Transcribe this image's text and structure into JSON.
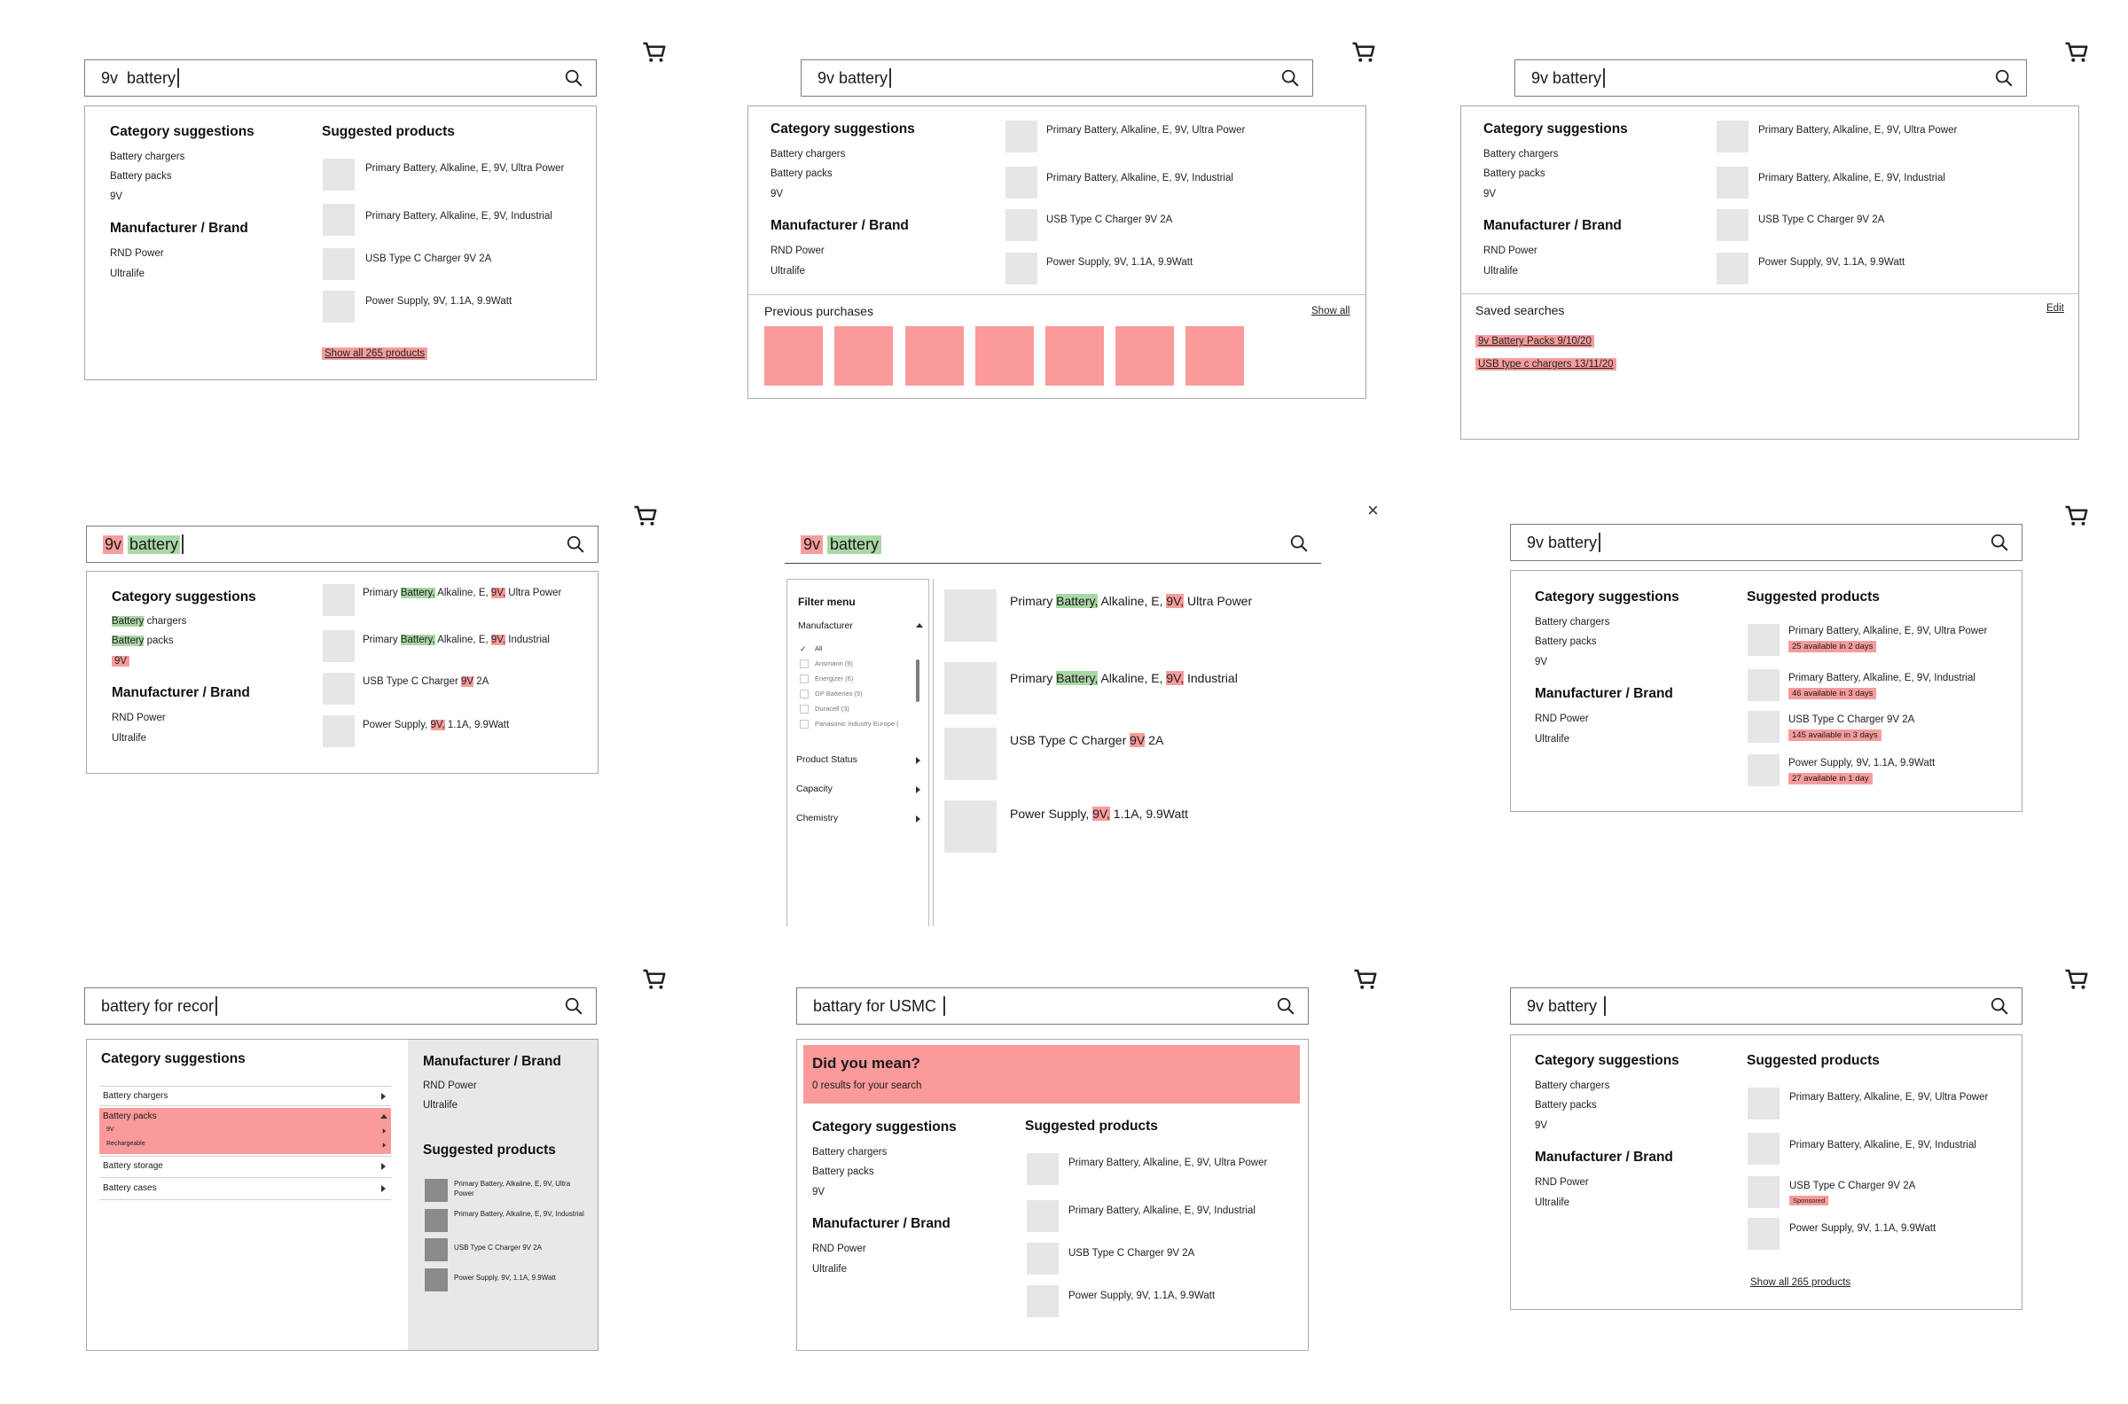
{
  "colors": {
    "highlight_red": "#f79c9c",
    "highlight_green": "#a9d7a5",
    "thumb": "#e6e6e6",
    "panel_border": "#a8a8a8"
  },
  "common": {
    "cat_title": "Category suggestions",
    "cat_items": [
      "Battery chargers",
      "Battery packs",
      "9V"
    ],
    "brand_title": "Manufacturer / Brand",
    "brand_items": [
      "RND Power",
      "Ultralife"
    ],
    "sugg_title": "Suggested products",
    "products": [
      "Primary Battery, Alkaline, E, 9V, Ultra Power",
      "Primary Battery, Alkaline, E, 9V, Industrial",
      "USB Type C Charger 9V 2A",
      "Power Supply, 9V, 1.1A, 9.9Watt"
    ],
    "show_all": "Show all 265 products",
    "search_term": "9v battery",
    "search_term_spaced": "9v  battery"
  },
  "w2": {
    "prev_title": "Previous purchases",
    "show_all": "Show all"
  },
  "w3": {
    "saved_title": "Saved searches",
    "edit": "Edit",
    "saved": [
      "9v Battery Packs 9/10/20",
      "USB type c chargers 13/11/20"
    ]
  },
  "w4": {
    "q1": "9v",
    "q2": "battery",
    "cat1a": "Battery",
    "cat1b": " chargers",
    "cat2a": "Battery",
    "cat2b": " packs",
    "cat3": "9V",
    "p1": [
      "Primary ",
      "Battery,",
      " Alkaline, E, ",
      "9V,",
      " Ultra Power"
    ],
    "p2": [
      "Primary ",
      "Battery,",
      " Alkaline, E, ",
      "9V,",
      " Industrial"
    ],
    "p3": [
      "USB Type C Charger ",
      "9V",
      " 2A"
    ],
    "p4": [
      "Power Supply, ",
      "9V,",
      " 1.1A, 9.9Watt"
    ]
  },
  "w5": {
    "filter_title": "Filter menu",
    "manufacturer": "Manufacturer",
    "options": [
      "All",
      "Ansmann  (9)",
      "Energizer  (6)",
      "GP Batteries  (5)",
      "Duracell  (3)",
      "Panasonic Industry Europe  ("
    ],
    "more": [
      "Product Status",
      "Capacity",
      "Chemistry"
    ],
    "close": "×"
  },
  "w6": {
    "badges": [
      "25 available in 2 days",
      "46 available in 3 days",
      "145 available in 3 days",
      "27 available in 1 day"
    ]
  },
  "w7": {
    "query": "battery for recor",
    "rows": [
      "Battery chargers",
      "Battery packs",
      "Battery storage",
      "Battery cases"
    ],
    "sub": [
      "9V",
      "Rechargeable"
    ],
    "products": [
      "Primary Battery, Alkaline, E, 9V, Ultra Power",
      "Primary Battery, Alkaline, E, 9V, Industrial",
      "USB Type C Charger 9V 2A",
      "Power Supply, 9V, 1.1A, 9.9Watt"
    ]
  },
  "w8": {
    "query": "battary for USMC",
    "dym": "Did you mean?",
    "zero": "0 results for your search"
  },
  "w9": {
    "sponsored": "Sponsored"
  }
}
